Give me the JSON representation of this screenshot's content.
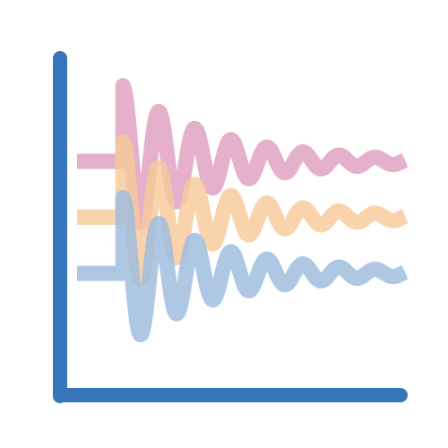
{
  "chart_data": {
    "type": "line",
    "title": "",
    "xlabel": "",
    "ylabel": "",
    "grid": false,
    "legend": "none",
    "axis_color": "#3575b8",
    "xlim": [
      0,
      100
    ],
    "ylim": [
      -60,
      60
    ],
    "series": [
      {
        "color": "#de9fc0",
        "offset": 20,
        "step_at": 14,
        "amplitude": 27,
        "decay": 0.038,
        "period": 11
      },
      {
        "color": "#f7c99a",
        "offset": 0,
        "step_at": 14,
        "amplitude": 27,
        "decay": 0.038,
        "period": 11
      },
      {
        "color": "#9cbcde",
        "offset": -20,
        "step_at": 14,
        "amplitude": 27,
        "decay": 0.038,
        "period": 11
      }
    ]
  }
}
